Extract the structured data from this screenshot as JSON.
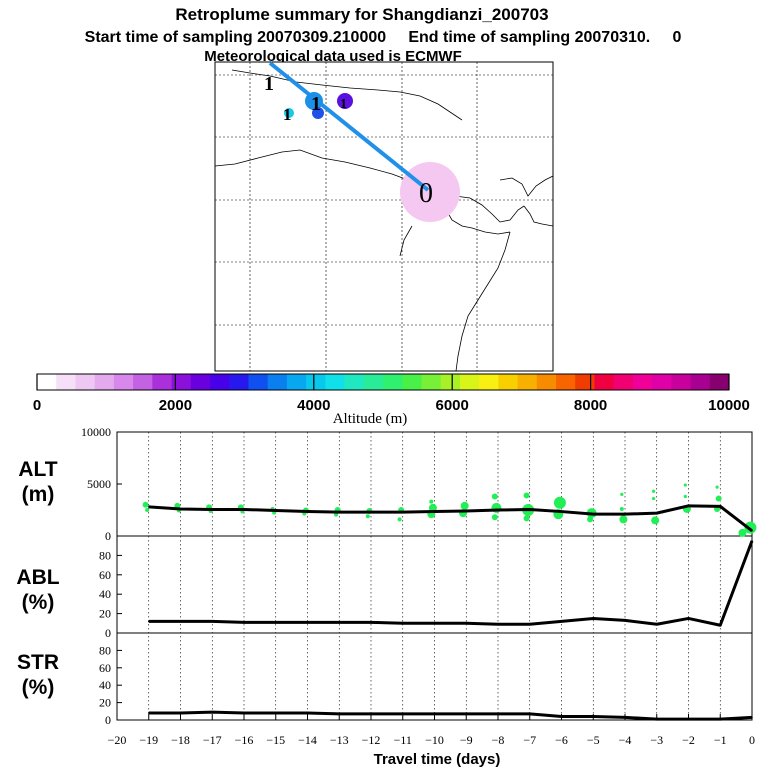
{
  "header": {
    "title": "Retroplume summary for Shangdianzi_200703",
    "sampling_line": "Start time of sampling 20070309.210000     End time of sampling 20070310.     0",
    "met_line": "Meteorological data used is ECMWF"
  },
  "colors": {
    "trajectory": "#2090e8",
    "release_halo": "#f4c8f0",
    "altitude_dots": "#22ee55",
    "series_line": "#000000"
  },
  "chart_data": [
    {
      "type": "map",
      "trajectory_labels": [
        "1",
        "1",
        "1",
        "1",
        "0"
      ],
      "markers": [
        {
          "label": "1",
          "altitude_m": 3600
        },
        {
          "label": "1",
          "altitude_m": 3400
        },
        {
          "label": "1",
          "altitude_m": 3000
        },
        {
          "label": "1",
          "altitude_m": 2200
        },
        {
          "label": "0",
          "altitude_m": 500
        }
      ]
    },
    {
      "type": "colorbar",
      "xlabel": "Altitude (m)",
      "range": [
        0,
        10000
      ],
      "tick_labels": [
        "0",
        "2000",
        "4000",
        "6000",
        "8000",
        "10000"
      ],
      "colors": [
        "#ffffff",
        "#f6e0f8",
        "#eec8f2",
        "#e4aaee",
        "#d888ea",
        "#c462e4",
        "#aa30dc",
        "#8c10dc",
        "#6a00e0",
        "#4800e8",
        "#2818f0",
        "#1050f0",
        "#0a80f0",
        "#08a8f0",
        "#08c8ec",
        "#10e0e8",
        "#20e8c0",
        "#28ec98",
        "#30f070",
        "#48f048",
        "#78f038",
        "#a8f028",
        "#d8f418",
        "#f8f010",
        "#f8d000",
        "#f8b000",
        "#f88c00",
        "#f86400",
        "#f03c00",
        "#f00040",
        "#f00070",
        "#f00098",
        "#e000a8",
        "#c8009c",
        "#a80090",
        "#880070"
      ]
    },
    {
      "type": "line",
      "panel": "ALT",
      "ylabel": "ALT\n(m)",
      "ylim": [
        0,
        10000
      ],
      "ytick_labels": [
        "0",
        "5000",
        "10000"
      ],
      "x": [
        -19,
        -18,
        -17,
        -16,
        -15,
        -14,
        -13,
        -12,
        -11,
        -10,
        -9,
        -8,
        -7,
        -6,
        -5,
        -4,
        -3,
        -2,
        -1,
        0
      ],
      "values": [
        2800,
        2600,
        2550,
        2550,
        2450,
        2350,
        2300,
        2300,
        2300,
        2350,
        2400,
        2500,
        2550,
        2350,
        2100,
        2100,
        2200,
        2900,
        2850,
        500
      ],
      "scatter_points": [
        {
          "x": -19.1,
          "y": 3000,
          "size": 3
        },
        {
          "x": -19.05,
          "y": 2500,
          "size": 2
        },
        {
          "x": -18.1,
          "y": 2900,
          "size": 3
        },
        {
          "x": -18.05,
          "y": 2450,
          "size": 2
        },
        {
          "x": -17.1,
          "y": 2750,
          "size": 3
        },
        {
          "x": -17.05,
          "y": 2400,
          "size": 2
        },
        {
          "x": -16.1,
          "y": 2750,
          "size": 3
        },
        {
          "x": -16.05,
          "y": 2350,
          "size": 2
        },
        {
          "x": -15.1,
          "y": 2600,
          "size": 2
        },
        {
          "x": -15.05,
          "y": 2250,
          "size": 2
        },
        {
          "x": -14.05,
          "y": 2450,
          "size": 3
        },
        {
          "x": -14.1,
          "y": 2150,
          "size": 2
        },
        {
          "x": -13.05,
          "y": 2500,
          "size": 3
        },
        {
          "x": -13.1,
          "y": 2050,
          "size": 2
        },
        {
          "x": -12.05,
          "y": 2400,
          "size": 3
        },
        {
          "x": -12.1,
          "y": 1900,
          "size": 2
        },
        {
          "x": -11.05,
          "y": 2500,
          "size": 3
        },
        {
          "x": -11.1,
          "y": 1600,
          "size": 2
        },
        {
          "x": -10.05,
          "y": 2700,
          "size": 4
        },
        {
          "x": -10.1,
          "y": 2100,
          "size": 4
        },
        {
          "x": -10.1,
          "y": 3300,
          "size": 2
        },
        {
          "x": -9.05,
          "y": 2900,
          "size": 4
        },
        {
          "x": -9.1,
          "y": 2200,
          "size": 4
        },
        {
          "x": -8.05,
          "y": 2700,
          "size": 5
        },
        {
          "x": -8.1,
          "y": 3800,
          "size": 3
        },
        {
          "x": -8.1,
          "y": 1800,
          "size": 3
        },
        {
          "x": -7.05,
          "y": 2500,
          "size": 6
        },
        {
          "x": -7.1,
          "y": 3900,
          "size": 3
        },
        {
          "x": -7.1,
          "y": 1700,
          "size": 3
        },
        {
          "x": -6.05,
          "y": 3200,
          "size": 6
        },
        {
          "x": -6.1,
          "y": 2100,
          "size": 5
        },
        {
          "x": -5.05,
          "y": 2200,
          "size": 5
        },
        {
          "x": -5.1,
          "y": 1600,
          "size": 3
        },
        {
          "x": -4.05,
          "y": 1600,
          "size": 4
        },
        {
          "x": -4.1,
          "y": 2600,
          "size": 2
        },
        {
          "x": -4.1,
          "y": 4000,
          "size": 1
        },
        {
          "x": -3.05,
          "y": 1500,
          "size": 4
        },
        {
          "x": -3.1,
          "y": 3600,
          "size": 1
        },
        {
          "x": -3.1,
          "y": 4300,
          "size": 1
        },
        {
          "x": -2.05,
          "y": 2600,
          "size": 4
        },
        {
          "x": -2.1,
          "y": 3800,
          "size": 1
        },
        {
          "x": -2.1,
          "y": 4900,
          "size": 1
        },
        {
          "x": -1.05,
          "y": 3600,
          "size": 3
        },
        {
          "x": -1.1,
          "y": 2600,
          "size": 3
        },
        {
          "x": -1.1,
          "y": 4700,
          "size": 1
        },
        {
          "x": -0.05,
          "y": 800,
          "size": 6
        },
        {
          "x": -0.3,
          "y": 300,
          "size": 4
        }
      ]
    },
    {
      "type": "line",
      "panel": "ABL",
      "ylabel": "ABL\n(%)",
      "ylim": [
        0,
        100
      ],
      "ytick_labels": [
        "0",
        "20",
        "40",
        "60",
        "80"
      ],
      "x": [
        -19,
        -18,
        -17,
        -16,
        -15,
        -14,
        -13,
        -12,
        -11,
        -10,
        -9,
        -8,
        -7,
        -6,
        -5,
        -4,
        -3,
        -2,
        -1,
        0
      ],
      "values": [
        12,
        12,
        12,
        11,
        11,
        11,
        11,
        11,
        10,
        10,
        10,
        9,
        9,
        12,
        15,
        13,
        9,
        15,
        8,
        95
      ]
    },
    {
      "type": "line",
      "panel": "STR",
      "ylabel": "STR\n(%)",
      "ylim": [
        0,
        100
      ],
      "ytick_labels": [
        "0",
        "20",
        "40",
        "60",
        "80"
      ],
      "x": [
        -19,
        -18,
        -17,
        -16,
        -15,
        -14,
        -13,
        -12,
        -11,
        -10,
        -9,
        -8,
        -7,
        -6,
        -5,
        -4,
        -3,
        -2,
        -1,
        0
      ],
      "values": [
        8,
        8,
        9,
        8,
        8,
        8,
        7,
        7,
        7,
        7,
        7,
        7,
        7,
        4,
        4,
        3,
        1,
        1,
        1,
        3
      ],
      "xlim": [
        -20,
        0
      ],
      "xtick_labels": [
        "−20",
        "−19",
        "−18",
        "−17",
        "−16",
        "−15",
        "−14",
        "−13",
        "−12",
        "−11",
        "−10",
        "−9",
        "−8",
        "−7",
        "−6",
        "−5",
        "−4",
        "−3",
        "−2",
        "−1",
        "0"
      ],
      "xlabel": "Travel time (days)"
    }
  ]
}
